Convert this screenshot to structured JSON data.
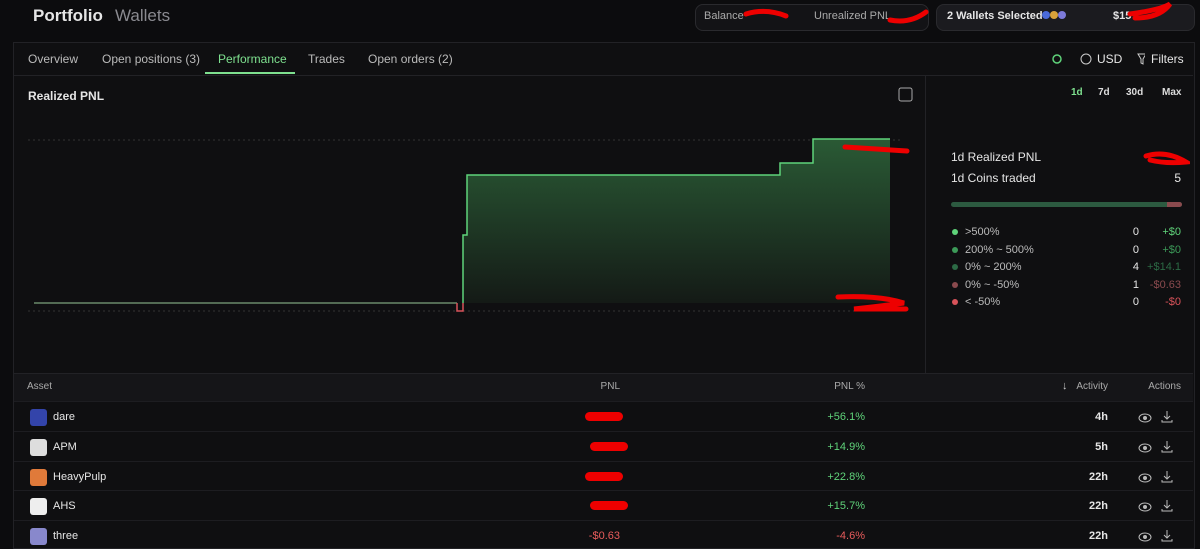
{
  "header": {
    "title": "Portfolio",
    "tab": "Wallets",
    "balance_label": "Balance",
    "unrealized_label": "Unrealized PNL",
    "wallets": "2 Wallets Selected",
    "wallet_value": "$15"
  },
  "tabs": {
    "items": [
      "Overview",
      "Open positions (3)",
      "Performance",
      "Trades",
      "Open orders (2)"
    ],
    "active": 2
  },
  "toolbar": {
    "currency": "USD",
    "filters": "Filters"
  },
  "panel": {
    "title": "Realized PNL",
    "ranges": [
      "1d",
      "7d",
      "30d",
      "Max"
    ],
    "active_range": 0,
    "realized_label": "1d Realized PNL",
    "coins_label": "1d Coins traded",
    "coins_value": 5,
    "buckets": [
      {
        "label": ">500%",
        "count": 0,
        "pnl": "+$0",
        "color": "#5fd37a"
      },
      {
        "label": "200% ~ 500%",
        "count": 0,
        "pnl": "+$0",
        "color": "#3c9a58"
      },
      {
        "label": "0% ~ 200%",
        "count": 4,
        "pnl": "+$14.1",
        "color": "#2c6a45"
      },
      {
        "label": "0% ~ -50%",
        "count": 1,
        "pnl": "-$0.63",
        "color": "#8a4a4e"
      },
      {
        "label": "< -50%",
        "count": 0,
        "pnl": "-$0",
        "color": "#d9535a"
      }
    ]
  },
  "table": {
    "columns": [
      "Asset",
      "PNL",
      "PNL %",
      "Activity",
      "Actions"
    ],
    "rows": [
      {
        "asset": "dare",
        "pnl_pct": "+56.1%",
        "activity": "4h"
      },
      {
        "asset": "APM",
        "pnl_pct": "+14.9%",
        "activity": "5h"
      },
      {
        "asset": "HeavyPulp",
        "pnl_pct": "+22.8%",
        "activity": "22h"
      },
      {
        "asset": "AHS",
        "pnl_pct": "+15.7%",
        "activity": "22h"
      },
      {
        "asset": "three",
        "pnl": "-$0.63",
        "pnl_pct": "-4.6%",
        "activity": "22h"
      }
    ]
  }
}
